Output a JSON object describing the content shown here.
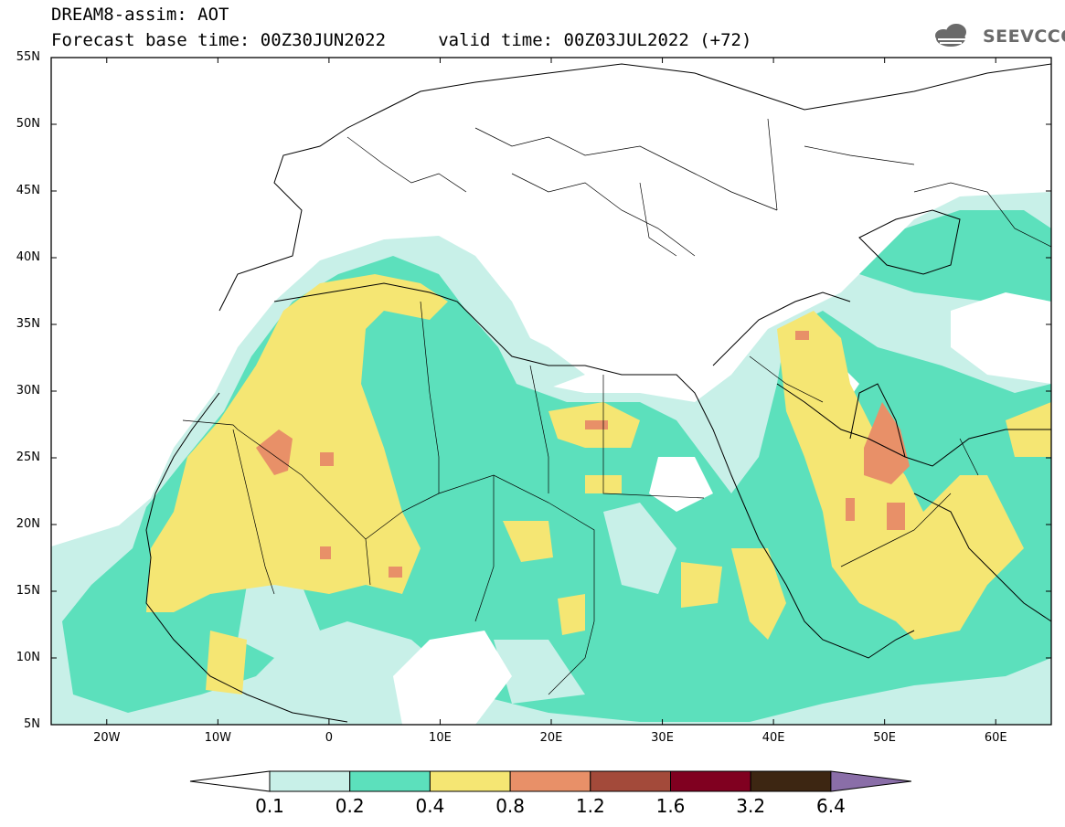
{
  "title": {
    "line1": "DREAM8-assim: AOT",
    "line2": "Forecast base time: 00Z30JUN2022     valid time: 00Z03JUL2022 (+72)"
  },
  "logo": {
    "text": "SEEVCCC",
    "icon": "cloud-icon"
  },
  "axes": {
    "lat_labels": [
      "55N",
      "50N",
      "45N",
      "40N",
      "35N",
      "30N",
      "25N",
      "20N",
      "15N",
      "10N",
      "5N"
    ],
    "lon_labels": [
      "20W",
      "10W",
      "0",
      "10E",
      "20E",
      "30E",
      "40E",
      "50E",
      "60E"
    ],
    "lon_range": [
      -25,
      65
    ],
    "lat_range": [
      5,
      55
    ]
  },
  "colorbar": {
    "labels": [
      "0.1",
      "0.2",
      "0.4",
      "0.8",
      "1.2",
      "1.6",
      "3.2",
      "6.4"
    ],
    "colors": [
      "#ffffff",
      "#c8f0e8",
      "#5ce0bc",
      "#f5e673",
      "#e89068",
      "#a34a3a",
      "#800020",
      "#3d2612",
      "#8a6ea8"
    ]
  },
  "colors": {
    "aot_01_02": "#c8f0e8",
    "aot_02_04": "#5ce0bc",
    "aot_04_08": "#f5e673",
    "aot_08_12": "#e89068"
  }
}
